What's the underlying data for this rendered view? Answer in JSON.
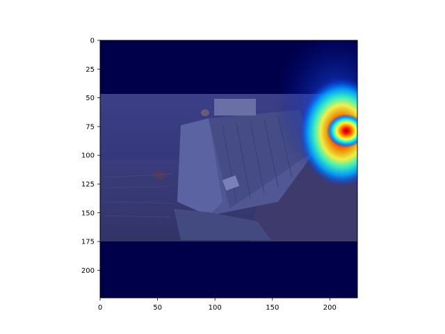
{
  "chart_data": {
    "type": "heatmap",
    "title": "",
    "xlabel": "",
    "ylabel": "",
    "xlim": [
      0,
      224
    ],
    "ylim": [
      224,
      0
    ],
    "x_ticks": [
      0,
      50,
      100,
      150,
      200
    ],
    "y_ticks": [
      0,
      25,
      50,
      75,
      100,
      125,
      150,
      175,
      200
    ],
    "x_tick_labels": [
      "0",
      "50",
      "100",
      "150",
      "200"
    ],
    "y_tick_labels": [
      "0",
      "25",
      "50",
      "75",
      "100",
      "125",
      "150",
      "175",
      "200"
    ],
    "colormap": "jet",
    "background_color": "#00004a",
    "photo_band_rows": [
      47,
      175
    ],
    "heat_spots": [
      {
        "x": 212,
        "y": 78,
        "intensity": 1.0
      },
      {
        "x": 200,
        "y": 75,
        "intensity": 0.55
      },
      {
        "x": 215,
        "y": 95,
        "intensity": 0.45
      }
    ],
    "grid": false,
    "legend": "none"
  }
}
